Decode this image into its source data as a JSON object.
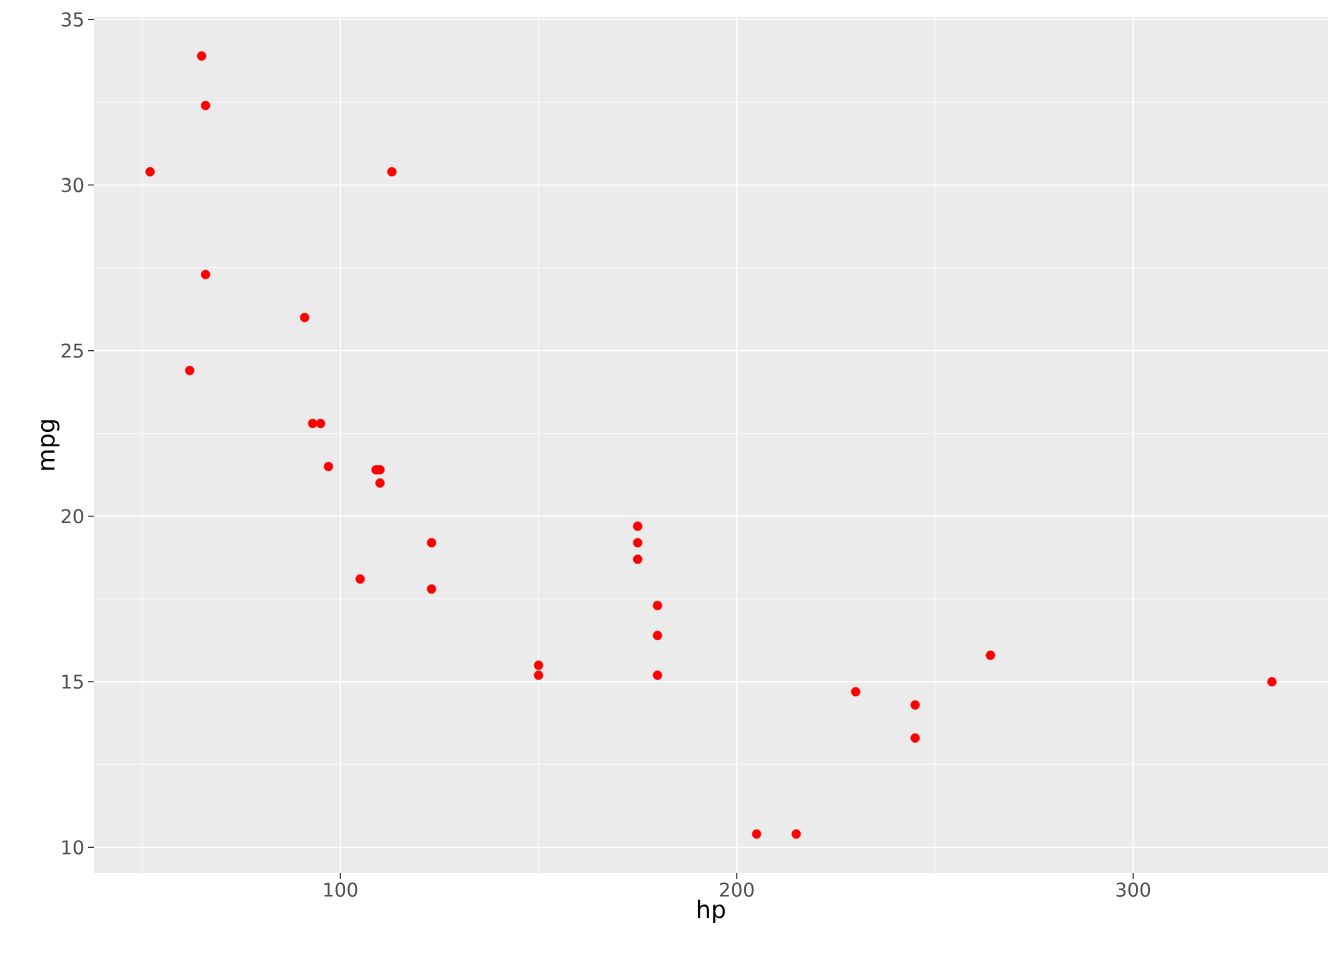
{
  "chart_data": {
    "type": "scatter",
    "xlabel": "hp",
    "ylabel": "mpg",
    "x": [
      110,
      93,
      110,
      175,
      105,
      245,
      62,
      95,
      123,
      123,
      180,
      180,
      180,
      205,
      215,
      230,
      66,
      52,
      65,
      97,
      150,
      150,
      245,
      175,
      66,
      91,
      113,
      264,
      175,
      335,
      109
    ],
    "values": [
      21.0,
      22.8,
      21.4,
      18.7,
      18.1,
      14.3,
      24.4,
      22.8,
      19.2,
      17.8,
      16.4,
      17.3,
      15.2,
      10.4,
      10.4,
      14.7,
      32.4,
      30.4,
      33.9,
      21.5,
      15.5,
      15.2,
      13.3,
      19.2,
      27.3,
      26.0,
      30.4,
      15.8,
      19.7,
      15.0,
      21.4
    ],
    "color": "#ff0000",
    "marker": "circle",
    "grid": true,
    "xlim": [
      37.85,
      349.15
    ],
    "ylim": [
      9.225,
      35.075
    ],
    "xticks": [
      100,
      200,
      300
    ],
    "yticks": [
      10,
      15,
      20,
      25,
      30,
      35
    ]
  }
}
